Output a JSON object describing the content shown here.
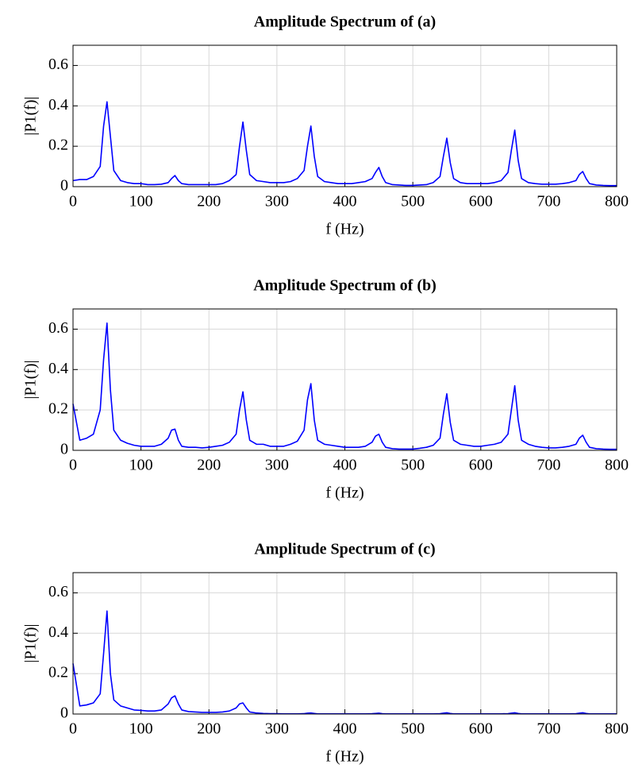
{
  "chart_data": [
    {
      "type": "line",
      "title": "Amplitude Spectrum of (a)",
      "xlabel": "f (Hz)",
      "ylabel": "|P1(f)|",
      "x": [
        0,
        10,
        20,
        30,
        40,
        45,
        50,
        55,
        60,
        70,
        80,
        90,
        100,
        110,
        120,
        130,
        140,
        145,
        150,
        155,
        160,
        170,
        180,
        190,
        200,
        210,
        220,
        230,
        240,
        245,
        250,
        255,
        260,
        270,
        280,
        290,
        300,
        310,
        320,
        330,
        340,
        345,
        350,
        355,
        360,
        370,
        380,
        390,
        400,
        410,
        420,
        430,
        440,
        445,
        450,
        455,
        460,
        470,
        480,
        490,
        500,
        510,
        520,
        530,
        540,
        545,
        550,
        555,
        560,
        570,
        580,
        590,
        600,
        610,
        620,
        630,
        640,
        645,
        650,
        655,
        660,
        670,
        680,
        690,
        700,
        710,
        720,
        730,
        740,
        745,
        750,
        755,
        760,
        770,
        780,
        790,
        800
      ],
      "values": [
        0.03,
        0.035,
        0.035,
        0.05,
        0.1,
        0.3,
        0.42,
        0.25,
        0.08,
        0.03,
        0.02,
        0.015,
        0.015,
        0.01,
        0.01,
        0.012,
        0.02,
        0.04,
        0.055,
        0.03,
        0.015,
        0.01,
        0.01,
        0.01,
        0.01,
        0.01,
        0.015,
        0.03,
        0.06,
        0.2,
        0.32,
        0.18,
        0.06,
        0.03,
        0.025,
        0.02,
        0.02,
        0.02,
        0.025,
        0.04,
        0.08,
        0.2,
        0.3,
        0.15,
        0.05,
        0.025,
        0.02,
        0.015,
        0.015,
        0.015,
        0.02,
        0.025,
        0.04,
        0.07,
        0.095,
        0.05,
        0.02,
        0.01,
        0.008,
        0.006,
        0.006,
        0.008,
        0.01,
        0.02,
        0.05,
        0.15,
        0.24,
        0.12,
        0.04,
        0.02,
        0.015,
        0.015,
        0.015,
        0.015,
        0.02,
        0.03,
        0.07,
        0.18,
        0.28,
        0.13,
        0.04,
        0.02,
        0.015,
        0.012,
        0.012,
        0.012,
        0.015,
        0.02,
        0.03,
        0.06,
        0.075,
        0.04,
        0.015,
        0.008,
        0.006,
        0.005,
        0.005
      ],
      "color": "#0000ff",
      "xlim": [
        0,
        800
      ],
      "ylim": [
        0,
        0.7
      ],
      "xticks": [
        0,
        100,
        200,
        300,
        400,
        500,
        600,
        700,
        800
      ],
      "yticks": [
        0,
        0.2,
        0.4,
        0.6
      ],
      "grid": true
    },
    {
      "type": "line",
      "title": "Amplitude Spectrum of (b)",
      "xlabel": "f (Hz)",
      "ylabel": "|P1(f)|",
      "x": [
        0,
        10,
        20,
        30,
        40,
        45,
        50,
        55,
        60,
        70,
        80,
        90,
        100,
        110,
        120,
        130,
        140,
        145,
        150,
        155,
        160,
        170,
        180,
        190,
        200,
        210,
        220,
        230,
        240,
        245,
        250,
        255,
        260,
        270,
        280,
        290,
        300,
        310,
        320,
        330,
        340,
        345,
        350,
        355,
        360,
        370,
        380,
        390,
        400,
        410,
        420,
        430,
        440,
        445,
        450,
        455,
        460,
        470,
        480,
        490,
        500,
        510,
        520,
        530,
        540,
        545,
        550,
        555,
        560,
        570,
        580,
        590,
        600,
        610,
        620,
        630,
        640,
        645,
        650,
        655,
        660,
        670,
        680,
        690,
        700,
        710,
        720,
        730,
        740,
        745,
        750,
        755,
        760,
        770,
        780,
        790,
        800
      ],
      "values": [
        0.23,
        0.05,
        0.06,
        0.08,
        0.2,
        0.45,
        0.63,
        0.3,
        0.1,
        0.05,
        0.035,
        0.025,
        0.02,
        0.02,
        0.02,
        0.03,
        0.06,
        0.1,
        0.105,
        0.05,
        0.02,
        0.015,
        0.015,
        0.012,
        0.015,
        0.02,
        0.025,
        0.04,
        0.08,
        0.2,
        0.29,
        0.15,
        0.05,
        0.03,
        0.03,
        0.02,
        0.02,
        0.02,
        0.03,
        0.045,
        0.1,
        0.25,
        0.33,
        0.15,
        0.05,
        0.03,
        0.025,
        0.02,
        0.015,
        0.015,
        0.015,
        0.02,
        0.04,
        0.07,
        0.08,
        0.04,
        0.015,
        0.008,
        0.006,
        0.006,
        0.006,
        0.01,
        0.015,
        0.025,
        0.06,
        0.18,
        0.28,
        0.14,
        0.05,
        0.03,
        0.025,
        0.02,
        0.02,
        0.025,
        0.03,
        0.04,
        0.08,
        0.2,
        0.32,
        0.15,
        0.05,
        0.03,
        0.02,
        0.015,
        0.012,
        0.012,
        0.015,
        0.02,
        0.03,
        0.06,
        0.075,
        0.04,
        0.015,
        0.008,
        0.006,
        0.005,
        0.005
      ],
      "color": "#0000ff",
      "xlim": [
        0,
        800
      ],
      "ylim": [
        0,
        0.7
      ],
      "xticks": [
        0,
        100,
        200,
        300,
        400,
        500,
        600,
        700,
        800
      ],
      "yticks": [
        0,
        0.2,
        0.4,
        0.6
      ],
      "grid": true
    },
    {
      "type": "line",
      "title": "Amplitude Spectrum of (c)",
      "xlabel": "f (Hz)",
      "ylabel": "|P1(f)|",
      "x": [
        0,
        10,
        20,
        30,
        40,
        45,
        50,
        55,
        60,
        70,
        80,
        90,
        100,
        110,
        120,
        130,
        140,
        145,
        150,
        155,
        160,
        170,
        180,
        190,
        200,
        210,
        220,
        230,
        240,
        245,
        250,
        255,
        260,
        270,
        280,
        290,
        300,
        310,
        320,
        330,
        340,
        345,
        350,
        355,
        360,
        370,
        380,
        390,
        400,
        410,
        420,
        430,
        440,
        445,
        450,
        455,
        460,
        470,
        480,
        490,
        500,
        510,
        520,
        530,
        540,
        545,
        550,
        555,
        560,
        570,
        580,
        590,
        600,
        610,
        620,
        630,
        640,
        645,
        650,
        655,
        660,
        670,
        680,
        690,
        700,
        710,
        720,
        730,
        740,
        745,
        750,
        755,
        760,
        770,
        780,
        790,
        800
      ],
      "values": [
        0.25,
        0.04,
        0.045,
        0.055,
        0.1,
        0.3,
        0.51,
        0.2,
        0.07,
        0.04,
        0.03,
        0.02,
        0.018,
        0.015,
        0.015,
        0.02,
        0.05,
        0.08,
        0.09,
        0.05,
        0.02,
        0.012,
        0.01,
        0.008,
        0.008,
        0.008,
        0.01,
        0.015,
        0.03,
        0.05,
        0.055,
        0.03,
        0.01,
        0.005,
        0.003,
        0.002,
        0.002,
        0.001,
        0.001,
        0.001,
        0.002,
        0.004,
        0.005,
        0.003,
        0.001,
        0.001,
        0.001,
        0.001,
        0.001,
        0.001,
        0.001,
        0.001,
        0.002,
        0.003,
        0.004,
        0.002,
        0.001,
        0.001,
        0.001,
        0.001,
        0.001,
        0.001,
        0.001,
        0.001,
        0.002,
        0.004,
        0.006,
        0.003,
        0.001,
        0.001,
        0.001,
        0.001,
        0.001,
        0.001,
        0.001,
        0.001,
        0.002,
        0.004,
        0.006,
        0.003,
        0.001,
        0.001,
        0.001,
        0.001,
        0.001,
        0.001,
        0.001,
        0.001,
        0.002,
        0.004,
        0.006,
        0.003,
        0.001,
        0.001,
        0.001,
        0.001,
        0.001
      ],
      "color": "#0000ff",
      "xlim": [
        0,
        800
      ],
      "ylim": [
        0,
        0.7
      ],
      "xticks": [
        0,
        100,
        200,
        300,
        400,
        500,
        600,
        700,
        800
      ],
      "yticks": [
        0,
        0.2,
        0.4,
        0.6
      ],
      "grid": true
    }
  ]
}
